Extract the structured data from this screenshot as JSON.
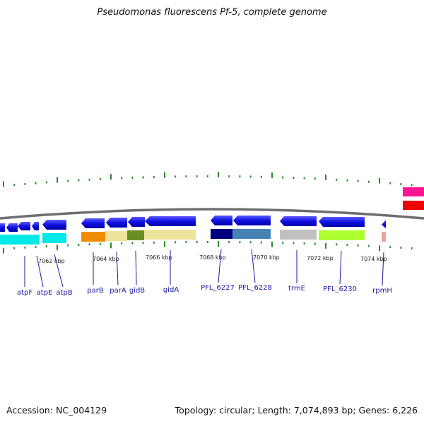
{
  "title": "Pseudomonas fluorescens Pf-5, complete genome",
  "footer": {
    "accession": "Accession: NC_004129",
    "topology": "Topology: circular; Length: 7,074,893 bp; Genes: 6,226"
  },
  "scale_labels": [
    "7062 kbp",
    "7064 kbp",
    "7066 kbp",
    "7068 kbp",
    "7070 kbp",
    "7072 kbp",
    "7074 kbp"
  ],
  "gene_labels": [
    "atpF",
    "atpE",
    "atpB",
    "parB",
    "parA",
    "gidB",
    "gidA",
    "PFL_6227",
    "PFL_6228",
    "trmE",
    "PFL_6230",
    "rpmH"
  ],
  "colors": {
    "gene_arrow": "#1010e0",
    "backbone": "#777777",
    "tick": "#2a8a2a",
    "label": "#1a1aa0",
    "cog_cyan": "#00e8e8",
    "cog_orange": "#f08c00",
    "cog_khaki": "#eee39a",
    "cog_olive": "#6b8e23",
    "cog_navy": "#000080",
    "cog_steelblue": "#4682b4",
    "cog_silver": "#c0c0c0",
    "cog_lime": "#adff2f",
    "cog_pink": "#f0a0a0",
    "cog_magenta": "#ff1493",
    "cog_red": "#ee0000"
  }
}
